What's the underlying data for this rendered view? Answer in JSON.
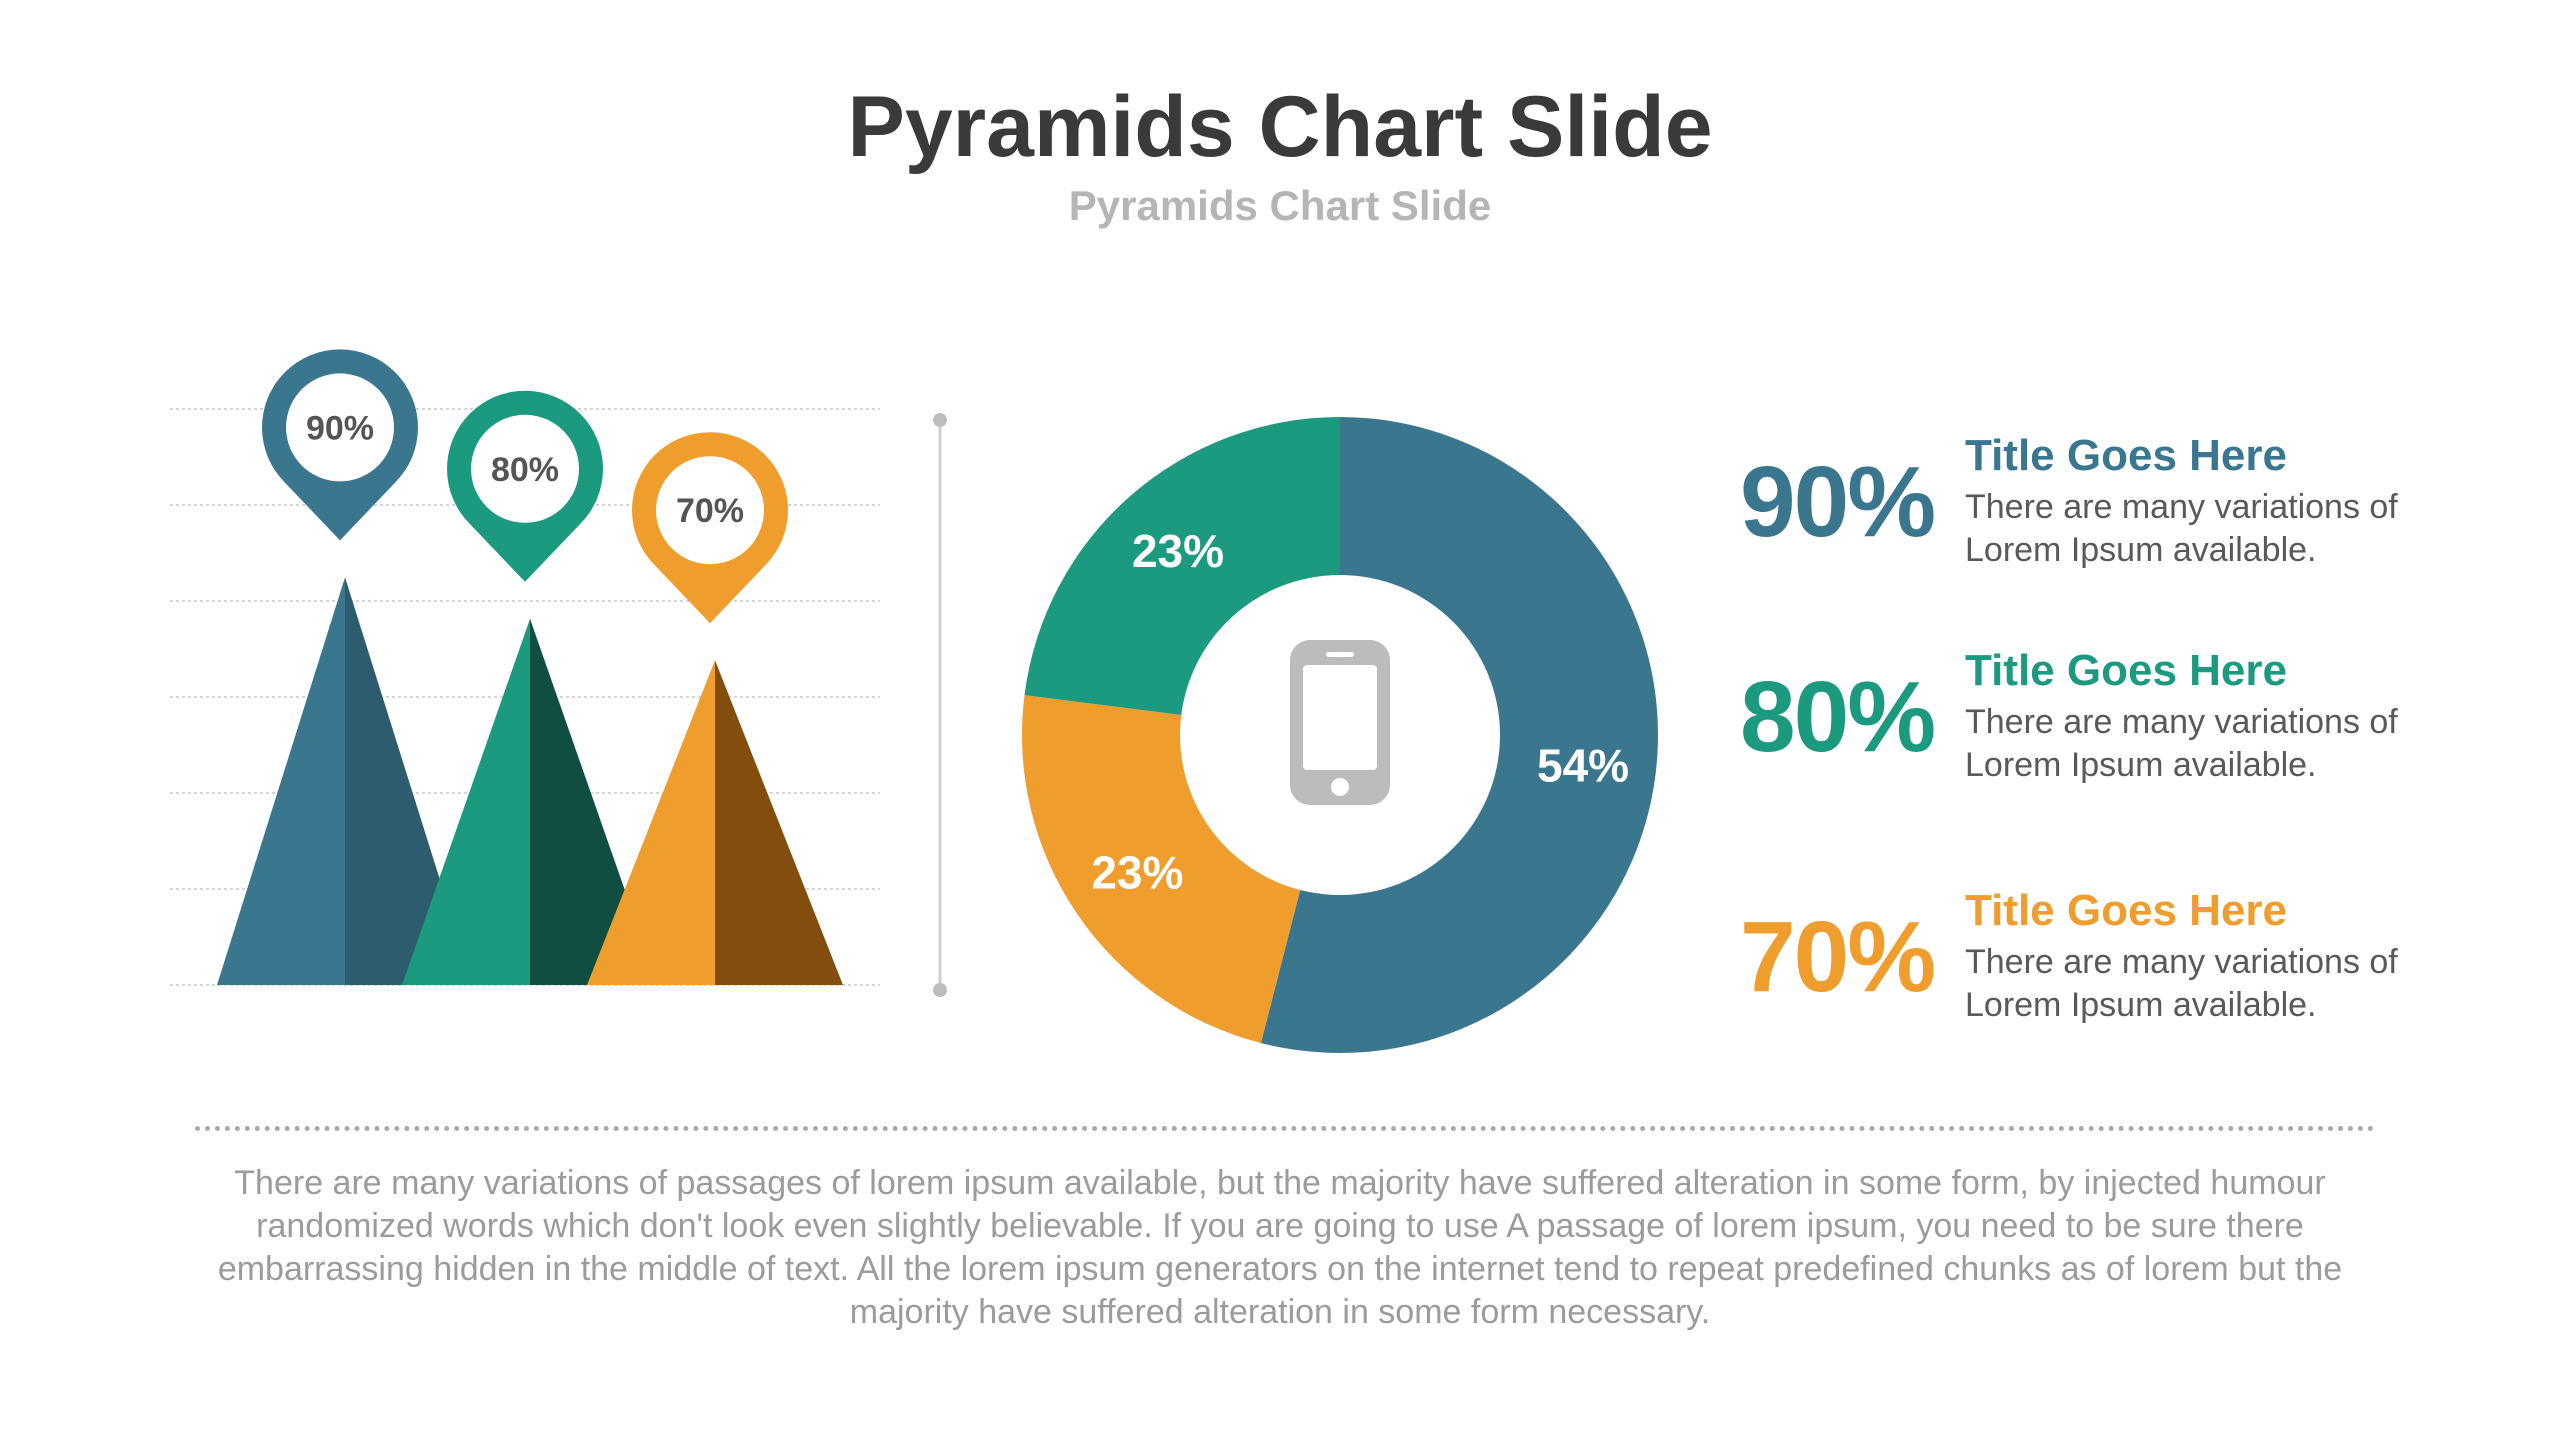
{
  "slide": {
    "title": "Pyramids Chart Slide",
    "subtitle": "Pyramids Chart Slide",
    "paragraph": "There are many variations of passages of lorem ipsum available, but the majority have suffered alteration in some form, by injected humour randomized words which don't look even slightly believable. If you are going to use A passage of lorem ipsum, you need to be sure there embarrassing hidden in the middle of text. All the lorem ipsum generators on the internet tend to repeat predefined chunks as of lorem but the majority have suffered alteration in some form  necessary."
  },
  "colors": {
    "blue": "#3A778F",
    "blue_dark": "#2C5C6E",
    "teal": "#1C9A80",
    "teal_dark": "#0F4E40",
    "orange": "#EF9D2C",
    "orange_dark": "#834E0D",
    "text_dark": "#3A3A3A",
    "text_grey": "#9B9B9B"
  },
  "icons": {
    "donut_center": "smartphone-icon",
    "pyramid_marker": "map-pin-icon"
  },
  "stats": [
    {
      "percent": "90%",
      "title": "Title Goes Here",
      "desc": "There are many variations of Lorem Ipsum available.",
      "color": "#3A778F"
    },
    {
      "percent": "80%",
      "title": "Title Goes Here",
      "desc": "There are many variations of Lorem Ipsum available.",
      "color": "#1C9A80"
    },
    {
      "percent": "70%",
      "title": "Title Goes Here",
      "desc": "There are many variations of Lorem Ipsum available.",
      "color": "#EF9D2C"
    }
  ],
  "chart_data": [
    {
      "type": "bar",
      "style": "pyramid",
      "values": [
        90,
        80,
        70
      ],
      "labels": [
        "90%",
        "80%",
        "70%"
      ],
      "ylim": [
        0,
        100
      ],
      "grid": true,
      "colors": [
        "#3A778F",
        "#1C9A80",
        "#EF9D2C"
      ]
    },
    {
      "type": "pie",
      "style": "donut",
      "values": [
        54,
        23,
        23
      ],
      "labels": [
        "54%",
        "23%",
        "23%"
      ],
      "colors": [
        "#3A778F",
        "#EF9D2C",
        "#1C9A80"
      ]
    }
  ]
}
